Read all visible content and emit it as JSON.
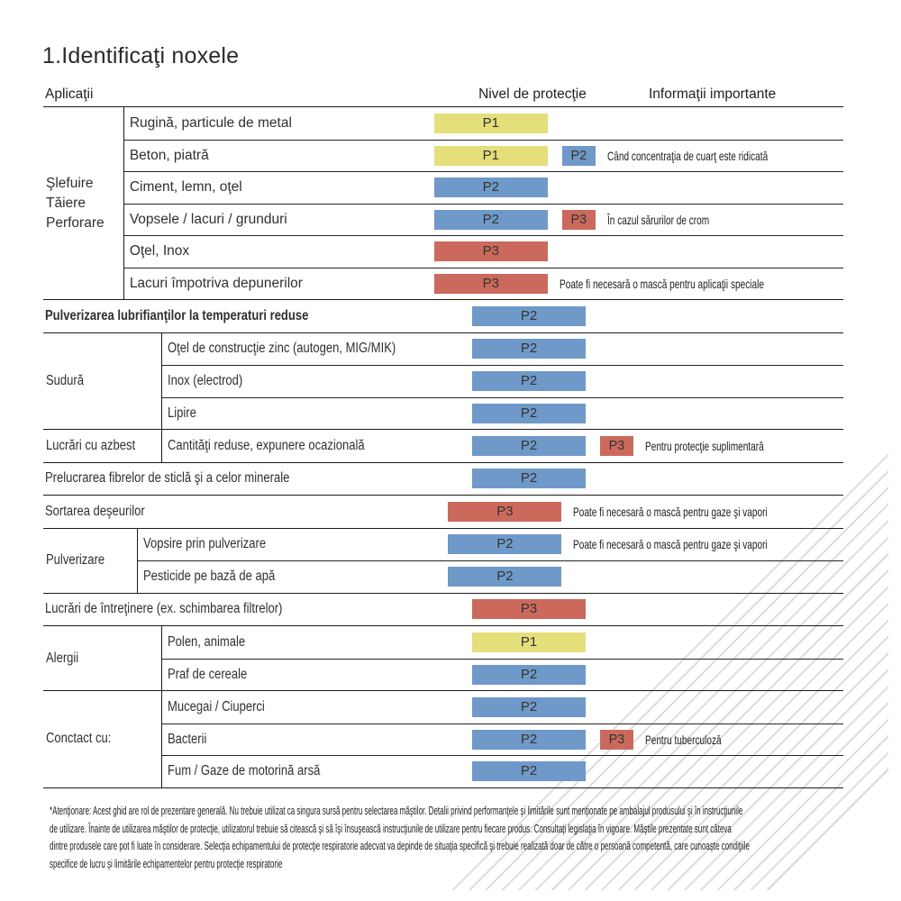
{
  "title": "1.Identificaţi noxele",
  "columns": {
    "applications": "Aplicaţii",
    "protection": "Nivel de protecţie",
    "info": "Informaţii importante"
  },
  "protection_colors": {
    "P1": "#e5df7b",
    "P2": "#6f99c8",
    "P3": "#cb6a5c"
  },
  "groups": [
    {
      "category": "Şlefuire\nTăiere\nPerforare",
      "rows": [
        {
          "label": "Rugină, particule de metal",
          "level": "P1"
        },
        {
          "label": "Beton, piatră",
          "level": "P1",
          "extra_level": "P2",
          "info": "Când concentraţia de cuarţ este ridicată"
        },
        {
          "label": "Ciment, lemn, oţel",
          "level": "P2"
        },
        {
          "label": "Vopsele / lacuri / grunduri",
          "level": "P2",
          "extra_level": "P3",
          "info": "În cazul sărurilor de crom"
        },
        {
          "label": "Oţel, Inox",
          "level": "P3"
        },
        {
          "label": "Lacuri împotriva depunerilor",
          "level": "P3",
          "info": "Poate fi necesară o mască pentru aplicaţii speciale"
        }
      ]
    },
    {
      "rows": [
        {
          "label": "Pulverizarea lubrifianţilor la temperaturi reduse",
          "level": "P2"
        }
      ]
    },
    {
      "category": "Sudură",
      "rows": [
        {
          "label": "Oţel de construcţie zinc (autogen, MIG/MIK)",
          "level": "P2"
        },
        {
          "label": "Inox (electrod)",
          "level": "P2"
        },
        {
          "label": "Lipire",
          "level": "P2"
        }
      ]
    },
    {
      "category": "Lucrări cu azbest",
      "rows": [
        {
          "label": "Cantităţi reduse, expunere ocazională",
          "level": "P2",
          "extra_level": "P3",
          "info": "Pentru protecţie suplimentară"
        }
      ]
    },
    {
      "rows": [
        {
          "label": "Prelucrarea fibrelor de sticlă şi a celor minerale",
          "level": "P2"
        }
      ]
    },
    {
      "rows": [
        {
          "label": "Sortarea deşeurilor",
          "level": "P3",
          "info": "Poate fi necesară o mască pentru gaze şi vapori"
        }
      ]
    },
    {
      "category": "Pulverizare",
      "rows": [
        {
          "label": "Vopsire prin pulverizare",
          "level": "P2",
          "info": "Poate fi necesară o mască pentru gaze şi vapori"
        },
        {
          "label": "Pesticide pe bază de apă",
          "level": "P2"
        }
      ]
    },
    {
      "rows": [
        {
          "label": "Lucrări de întreţinere (ex. schimbarea filtrelor)",
          "level": "P3"
        }
      ]
    },
    {
      "category": "Alergii",
      "rows": [
        {
          "label": "Polen, animale",
          "level": "P1"
        },
        {
          "label": "Praf de cereale",
          "level": "P2"
        }
      ]
    },
    {
      "category": "Conctact cu:",
      "rows": [
        {
          "label": "Mucegai / Ciuperci",
          "level": "P2"
        },
        {
          "label": "Bacterii",
          "level": "P2",
          "extra_level": "P3",
          "info": "Pentru tuberculoză"
        },
        {
          "label": "Fum / Gaze de motorină arsă",
          "level": "P2"
        }
      ]
    }
  ],
  "footnote": {
    "lines": [
      "*Atenţionare: Acest ghid are rol de prezentare generală. Nu trebuie utilizat ca singura sursă pentru selectarea măştilor. Detalii privind performanţele şi limitările sunt menţionate pe ambalajul produsului şi în instrucţiunile",
      "de utilizare. Înainte de utilizarea măştilor de protecţie, utilizatorul trebuie să citească şi să îşi însuşească instrucţiunile de utilizare pentru fiecare produs. Consultaţi legislaţia în vigoare. Măştile prezentate sunt câteva",
      "dintre produsele care pot fi luate în considerare. Selecţia echipamentului de protecţie respiratorie adecvat va depinde de situaţia specifică şi trebuie realizată doar de către o persoană competentă, care cunoaşte condiţiile",
      "specifice de lucru şi limitările echipamentelor pentru protecţie respiratorie"
    ]
  }
}
